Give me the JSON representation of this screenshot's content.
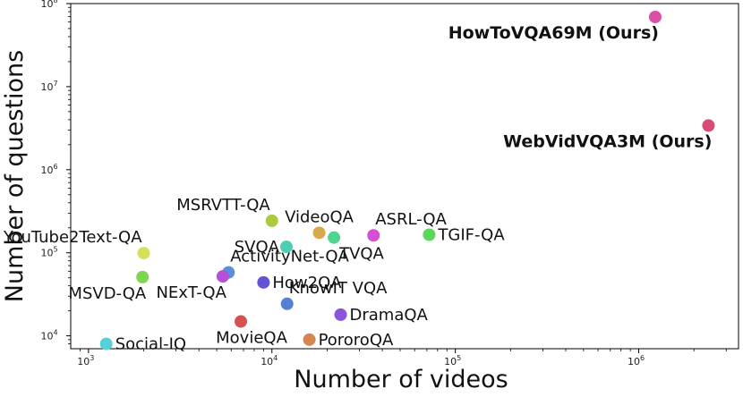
{
  "chart_data": {
    "type": "scatter",
    "xlabel": "Number of videos",
    "ylabel": "Number of questions",
    "x_scale": "log",
    "y_scale": "log",
    "xlim": [
      800,
      3500000
    ],
    "ylim": [
      7000,
      100000000
    ],
    "x_ticks": [
      1000,
      10000,
      100000,
      1000000
    ],
    "x_tick_labels": [
      {
        "base": "10",
        "exp": "3"
      },
      {
        "base": "10",
        "exp": "4"
      },
      {
        "base": "10",
        "exp": "5"
      },
      {
        "base": "10",
        "exp": "6"
      }
    ],
    "y_ticks": [
      10000,
      100000,
      1000000,
      10000000,
      100000000
    ],
    "y_tick_labels": [
      {
        "base": "10",
        "exp": "4"
      },
      {
        "base": "10",
        "exp": "5"
      },
      {
        "base": "10",
        "exp": "6"
      },
      {
        "base": "10",
        "exp": "7"
      },
      {
        "base": "10",
        "exp": "8"
      }
    ],
    "grid": false,
    "points": [
      {
        "name": "HowToVQA69M (Ours)",
        "x": 1230000,
        "y": 69000000,
        "color": "#d94fa6",
        "bold": true,
        "label_pos": "below-left"
      },
      {
        "name": "WebVidVQA3M (Ours)",
        "x": 2400000,
        "y": 3400000,
        "color": "#d64c72",
        "bold": true,
        "label_pos": "below-left"
      },
      {
        "name": "MSRVTT-QA",
        "x": 10000,
        "y": 243000,
        "color": "#a8cc3e",
        "label_pos": "above-left"
      },
      {
        "name": "YouTube2Text-QA",
        "x": 2000,
        "y": 99000,
        "color": "#d7e05a",
        "label_pos": "above-left"
      },
      {
        "name": "VideoQA",
        "x": 18100,
        "y": 174000,
        "color": "#d9a84a",
        "label_pos": "above-center"
      },
      {
        "name": "TVQA",
        "x": 21800,
        "y": 152500,
        "color": "#4fd68e",
        "label_pos": "below-right"
      },
      {
        "name": "ASRL-QA",
        "x": 35800,
        "y": 162000,
        "color": "#d44fd6",
        "label_pos": "above-right"
      },
      {
        "name": "TGIF-QA",
        "x": 72000,
        "y": 165000,
        "color": "#59d65b",
        "label_pos": "right"
      },
      {
        "name": "SVQA",
        "x": 12000,
        "y": 118000,
        "color": "#4ecfb3",
        "label_pos": "left"
      },
      {
        "name": "ActivityNet-QA",
        "x": 5800,
        "y": 58000,
        "color": "#5b8fd6",
        "label_pos": "above-right"
      },
      {
        "name": "MSVD-QA",
        "x": 1970,
        "y": 51000,
        "color": "#7ed64e",
        "label_pos": "below-left"
      },
      {
        "name": "NExT-QA",
        "x": 5400,
        "y": 52000,
        "color": "#b44fd6",
        "label_pos": "below-left"
      },
      {
        "name": "How2QA",
        "x": 9000,
        "y": 44000,
        "color": "#6155d6",
        "label_pos": "right"
      },
      {
        "name": "KnowIT VQA",
        "x": 12100,
        "y": 24300,
        "color": "#5580d6",
        "label_pos": "above-right"
      },
      {
        "name": "DramaQA",
        "x": 23700,
        "y": 18000,
        "color": "#8a55d6",
        "label_pos": "right"
      },
      {
        "name": "MovieQA",
        "x": 6770,
        "y": 14900,
        "color": "#d65050",
        "label_pos": "below-center"
      },
      {
        "name": "PororoQA",
        "x": 16000,
        "y": 9000,
        "color": "#d68550",
        "label_pos": "right"
      },
      {
        "name": "Social-IQ",
        "x": 1250,
        "y": 8000,
        "color": "#55d0d6",
        "label_pos": "right"
      }
    ]
  }
}
